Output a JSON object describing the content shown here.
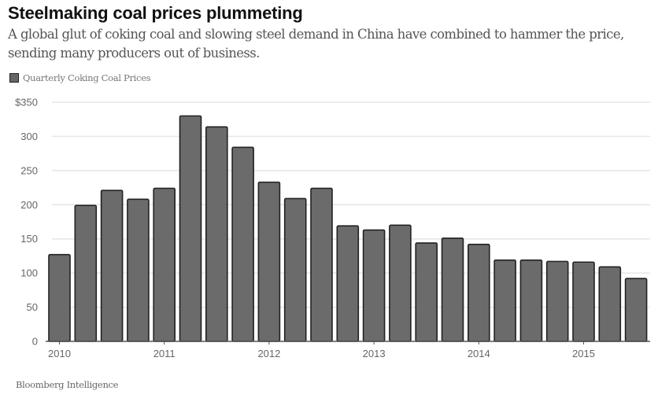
{
  "header": {
    "title": "Steelmaking coal prices plummeting",
    "subtitle": "A global glut of coking coal and slowing steel demand in China have combined to hammer the price, sending many producers out of business."
  },
  "footer": {
    "source": "Bloomberg Intelligence"
  },
  "colors": {
    "bar_fill": "#6b6b6b",
    "bar_stroke": "#222222",
    "grid": "#e6e6e6",
    "axis": "#555555"
  },
  "chart_data": {
    "type": "bar",
    "title": "Steelmaking coal prices plummeting",
    "subtitle": "A global glut of coking coal and slowing steel demand in China have combined to hammer the price, sending many producers out of business.",
    "xlabel": "",
    "ylabel": "",
    "legend": {
      "position": "top-left",
      "entries": [
        "Quarterly Coking Coal Prices"
      ]
    },
    "categories": [
      "2010 Q1",
      "2010 Q2",
      "2010 Q3",
      "2010 Q4",
      "2011 Q1",
      "2011 Q2",
      "2011 Q3",
      "2011 Q4",
      "2012 Q1",
      "2012 Q2",
      "2012 Q3",
      "2012 Q4",
      "2013 Q1",
      "2013 Q2",
      "2013 Q3",
      "2013 Q4",
      "2014 Q1",
      "2014 Q2",
      "2014 Q3",
      "2014 Q4",
      "2015 Q1",
      "2015 Q2",
      "2015 Q3"
    ],
    "series": [
      {
        "name": "Quarterly Coking Coal Prices",
        "values": [
          127,
          199,
          221,
          208,
          224,
          330,
          314,
          284,
          233,
          209,
          224,
          169,
          163,
          170,
          144,
          151,
          142,
          119,
          119,
          117,
          116,
          109,
          92
        ]
      }
    ],
    "ylim": [
      0,
      350
    ],
    "yticks": [
      0,
      50,
      100,
      150,
      200,
      250,
      300,
      350
    ],
    "ytick_labels": [
      "0",
      "50",
      "100",
      "150",
      "200",
      "250",
      "300",
      "$350"
    ],
    "xtick_labels": [
      {
        "label": "2010",
        "index": 0
      },
      {
        "label": "2011",
        "index": 4
      },
      {
        "label": "2012",
        "index": 8
      },
      {
        "label": "2013",
        "index": 12
      },
      {
        "label": "2014",
        "index": 16
      },
      {
        "label": "2015",
        "index": 20
      }
    ],
    "grid": true,
    "source": "Bloomberg Intelligence"
  }
}
